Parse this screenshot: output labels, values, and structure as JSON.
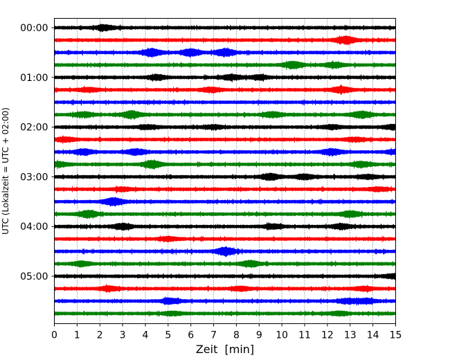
{
  "chart_data": {
    "type": "line",
    "title": "",
    "xlabel": "Zeit  [min]",
    "ylabel": "UTC (Lokalzeit = UTC + 02:00)",
    "xlim": [
      0,
      15
    ],
    "x_ticks": [
      "0",
      "1",
      "2",
      "3",
      "4",
      "5",
      "6",
      "7",
      "8",
      "9",
      "10",
      "11",
      "12",
      "13",
      "14",
      "15"
    ],
    "y_ticks": [
      "00:00",
      "01:00",
      "02:00",
      "03:00",
      "04:00",
      "05:00"
    ],
    "x_grid": true,
    "y_grid": false,
    "trace_minutes": 15,
    "color_cycle": [
      "#000000",
      "#ff0000",
      "#0000ff",
      "#008000"
    ],
    "traces": [
      {
        "utc": "00:00",
        "events": [
          [
            2.2,
            0.7
          ]
        ]
      },
      {
        "utc": "00:15",
        "events": [
          [
            12.8,
            1.0
          ]
        ]
      },
      {
        "utc": "00:30",
        "events": [
          [
            4.3,
            1.0
          ],
          [
            6.0,
            0.9
          ],
          [
            7.5,
            1.0
          ]
        ]
      },
      {
        "utc": "00:45",
        "events": [
          [
            10.5,
            0.9
          ],
          [
            12.3,
            0.6
          ]
        ]
      },
      {
        "utc": "01:00",
        "events": [
          [
            4.5,
            0.6
          ],
          [
            7.8,
            0.7
          ],
          [
            9.0,
            0.6
          ]
        ]
      },
      {
        "utc": "01:15",
        "events": [
          [
            1.5,
            0.5
          ],
          [
            6.9,
            0.6
          ],
          [
            12.6,
            0.8
          ]
        ]
      },
      {
        "utc": "01:30",
        "events": []
      },
      {
        "utc": "01:45",
        "events": [
          [
            1.3,
            0.7
          ],
          [
            3.4,
            1.0
          ],
          [
            9.6,
            0.7
          ],
          [
            13.5,
            0.9
          ]
        ]
      },
      {
        "utc": "02:00",
        "events": [
          [
            4.1,
            0.5
          ],
          [
            7.0,
            0.5
          ],
          [
            12.2,
            0.5
          ],
          [
            14.9,
            0.6
          ]
        ]
      },
      {
        "utc": "02:15",
        "events": [
          [
            0.5,
            0.6
          ],
          [
            13.2,
            0.5
          ]
        ]
      },
      {
        "utc": "02:30",
        "events": [
          [
            1.3,
            0.7
          ],
          [
            3.6,
            0.8
          ],
          [
            12.2,
            0.8
          ],
          [
            15.0,
            0.6
          ]
        ]
      },
      {
        "utc": "02:45",
        "events": [
          [
            0.2,
            0.6
          ],
          [
            4.3,
            1.0
          ],
          [
            13.5,
            0.7
          ]
        ]
      },
      {
        "utc": "03:00",
        "events": [
          [
            9.5,
            0.8
          ],
          [
            11.0,
            0.6
          ],
          [
            13.8,
            0.5
          ]
        ]
      },
      {
        "utc": "03:15",
        "events": [
          [
            3.0,
            0.5
          ],
          [
            14.2,
            0.5
          ]
        ]
      },
      {
        "utc": "03:30",
        "events": [
          [
            2.6,
            1.0
          ]
        ]
      },
      {
        "utc": "03:45",
        "events": [
          [
            1.5,
            0.9
          ],
          [
            13.0,
            0.8
          ]
        ]
      },
      {
        "utc": "04:00",
        "events": [
          [
            3.0,
            0.8
          ],
          [
            9.6,
            0.6
          ],
          [
            12.6,
            0.7
          ]
        ]
      },
      {
        "utc": "04:15",
        "events": [
          [
            5.0,
            0.5
          ]
        ]
      },
      {
        "utc": "04:30",
        "events": [
          [
            7.5,
            1.0
          ]
        ]
      },
      {
        "utc": "04:45",
        "events": [
          [
            1.2,
            0.6
          ],
          [
            8.6,
            0.8
          ]
        ]
      },
      {
        "utc": "05:00",
        "events": [
          [
            14.9,
            0.5
          ]
        ]
      },
      {
        "utc": "05:15",
        "events": [
          [
            2.4,
            0.6
          ],
          [
            8.2,
            0.5
          ],
          [
            13.6,
            0.5
          ]
        ]
      },
      {
        "utc": "05:30",
        "events": [
          [
            5.1,
            0.7
          ],
          [
            12.9,
            0.6
          ],
          [
            13.7,
            0.6
          ]
        ]
      },
      {
        "utc": "05:45",
        "events": [
          [
            5.2,
            0.5
          ],
          [
            12.5,
            0.5
          ]
        ]
      }
    ]
  }
}
